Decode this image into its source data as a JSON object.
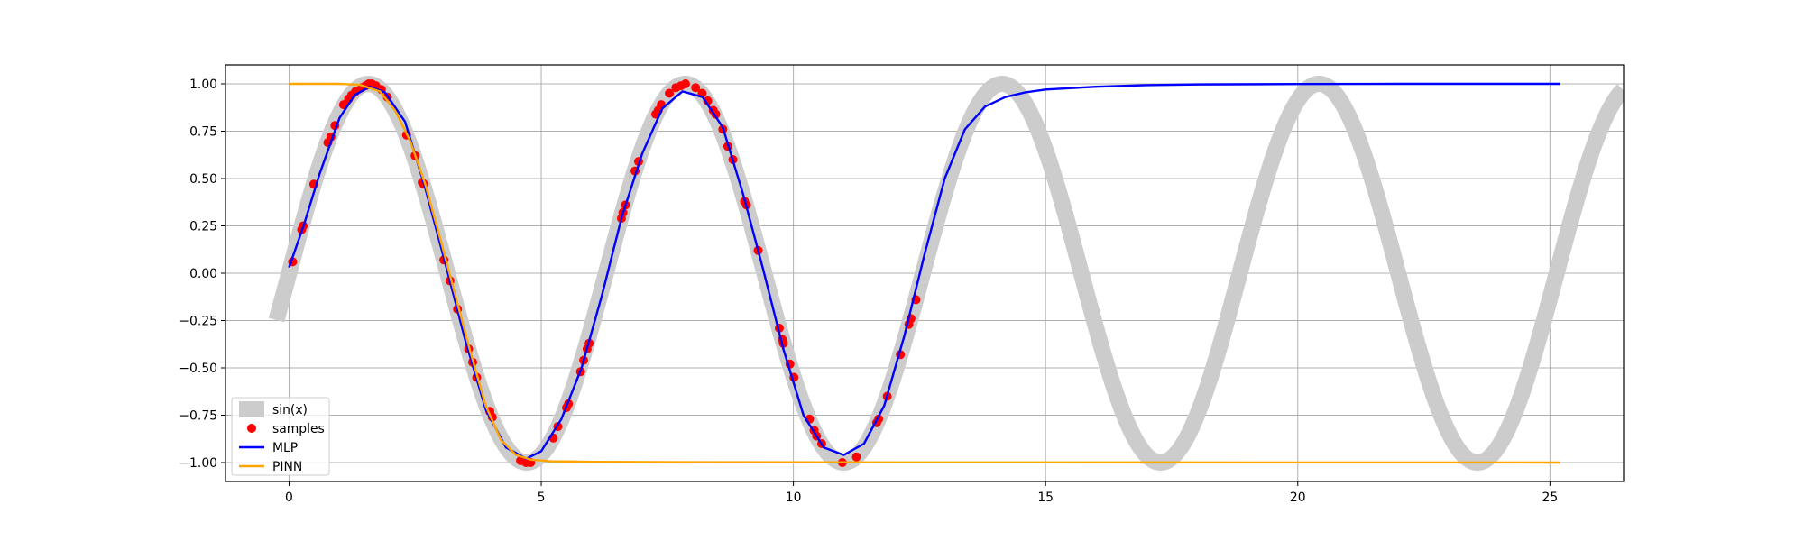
{
  "chart_data": {
    "type": "line",
    "title": "",
    "xlabel": "",
    "ylabel": "",
    "xlim": [
      -1.26,
      26.46
    ],
    "ylim": [
      -1.1,
      1.1
    ],
    "grid": true,
    "xticks": [
      {
        "value": 0,
        "label": "0"
      },
      {
        "value": 5,
        "label": "5"
      },
      {
        "value": 10,
        "label": "10"
      },
      {
        "value": 15,
        "label": "15"
      },
      {
        "value": 20,
        "label": "20"
      },
      {
        "value": 25,
        "label": "25"
      }
    ],
    "yticks": [
      {
        "value": 1.0,
        "label": "1.00"
      },
      {
        "value": 0.75,
        "label": "0.75"
      },
      {
        "value": 0.5,
        "label": "0.50"
      },
      {
        "value": 0.25,
        "label": "0.25"
      },
      {
        "value": 0.0,
        "label": "0.00"
      },
      {
        "value": -0.25,
        "label": "−0.25"
      },
      {
        "value": -0.5,
        "label": "−0.50"
      },
      {
        "value": -0.75,
        "label": "−0.75"
      },
      {
        "value": -1.0,
        "label": "−1.00"
      }
    ],
    "legend_position": "lower-left",
    "series": [
      {
        "name": "sin(x)",
        "kind": "line",
        "color": "#cccccc",
        "function": "sin",
        "domain": [
          -0.25,
          26.45
        ]
      },
      {
        "name": "samples",
        "kind": "scatter",
        "color": "#ff0000",
        "points": [
          [
            0.07,
            0.06
          ],
          [
            0.25,
            0.23
          ],
          [
            0.28,
            0.25
          ],
          [
            0.49,
            0.47
          ],
          [
            0.77,
            0.69
          ],
          [
            0.83,
            0.72
          ],
          [
            0.91,
            0.78
          ],
          [
            1.08,
            0.89
          ],
          [
            1.18,
            0.92
          ],
          [
            1.24,
            0.94
          ],
          [
            1.32,
            0.96
          ],
          [
            1.44,
            0.98
          ],
          [
            1.52,
            0.99
          ],
          [
            1.58,
            1.0
          ],
          [
            1.64,
            1.0
          ],
          [
            1.72,
            0.99
          ],
          [
            1.83,
            0.97
          ],
          [
            1.95,
            0.93
          ],
          [
            2.33,
            0.73
          ],
          [
            2.5,
            0.62
          ],
          [
            2.64,
            0.48
          ],
          [
            2.67,
            0.47
          ],
          [
            3.07,
            0.07
          ],
          [
            3.19,
            -0.04
          ],
          [
            3.34,
            -0.19
          ],
          [
            3.56,
            -0.4
          ],
          [
            3.64,
            -0.47
          ],
          [
            3.72,
            -0.55
          ],
          [
            3.98,
            -0.73
          ],
          [
            4.03,
            -0.76
          ],
          [
            4.59,
            -0.99
          ],
          [
            4.7,
            -1.0
          ],
          [
            4.79,
            -1.0
          ],
          [
            5.24,
            -0.87
          ],
          [
            5.33,
            -0.81
          ],
          [
            5.5,
            -0.71
          ],
          [
            5.54,
            -0.69
          ],
          [
            5.78,
            -0.52
          ],
          [
            5.84,
            -0.46
          ],
          [
            5.91,
            -0.4
          ],
          [
            5.95,
            -0.37
          ],
          [
            6.59,
            0.29
          ],
          [
            6.62,
            0.32
          ],
          [
            6.67,
            0.36
          ],
          [
            6.86,
            0.54
          ],
          [
            6.93,
            0.59
          ],
          [
            7.27,
            0.84
          ],
          [
            7.32,
            0.86
          ],
          [
            7.38,
            0.89
          ],
          [
            7.54,
            0.95
          ],
          [
            7.67,
            0.98
          ],
          [
            7.77,
            0.99
          ],
          [
            7.86,
            1.0
          ],
          [
            8.06,
            0.98
          ],
          [
            8.19,
            0.95
          ],
          [
            8.3,
            0.91
          ],
          [
            8.41,
            0.86
          ],
          [
            8.46,
            0.84
          ],
          [
            8.6,
            0.76
          ],
          [
            8.7,
            0.67
          ],
          [
            8.8,
            0.6
          ],
          [
            9.03,
            0.38
          ],
          [
            9.07,
            0.36
          ],
          [
            9.3,
            0.12
          ],
          [
            9.72,
            -0.29
          ],
          [
            9.78,
            -0.35
          ],
          [
            9.8,
            -0.37
          ],
          [
            9.93,
            -0.48
          ],
          [
            10.01,
            -0.55
          ],
          [
            10.32,
            -0.77
          ],
          [
            10.41,
            -0.83
          ],
          [
            10.46,
            -0.86
          ],
          [
            10.56,
            -0.9
          ],
          [
            10.97,
            -1.0
          ],
          [
            11.25,
            -0.97
          ],
          [
            11.65,
            -0.79
          ],
          [
            11.69,
            -0.77
          ],
          [
            11.86,
            -0.65
          ],
          [
            12.12,
            -0.43
          ],
          [
            12.29,
            -0.27
          ],
          [
            12.33,
            -0.24
          ],
          [
            12.43,
            -0.14
          ]
        ]
      },
      {
        "name": "MLP",
        "kind": "line",
        "color": "#0000ff",
        "points": [
          [
            0.0,
            0.03
          ],
          [
            0.3,
            0.26
          ],
          [
            0.6,
            0.52
          ],
          [
            1.0,
            0.82
          ],
          [
            1.3,
            0.94
          ],
          [
            1.6,
            0.985
          ],
          [
            1.9,
            0.955
          ],
          [
            2.3,
            0.8
          ],
          [
            2.7,
            0.45
          ],
          [
            3.1,
            0.05
          ],
          [
            3.5,
            -0.36
          ],
          [
            3.9,
            -0.72
          ],
          [
            4.3,
            -0.92
          ],
          [
            4.7,
            -0.98
          ],
          [
            5.0,
            -0.94
          ],
          [
            5.4,
            -0.77
          ],
          [
            5.8,
            -0.5
          ],
          [
            6.2,
            -0.12
          ],
          [
            6.6,
            0.3
          ],
          [
            7.0,
            0.63
          ],
          [
            7.4,
            0.87
          ],
          [
            7.8,
            0.96
          ],
          [
            8.2,
            0.93
          ],
          [
            8.6,
            0.77
          ],
          [
            9.0,
            0.42
          ],
          [
            9.4,
            0.02
          ],
          [
            9.8,
            -0.4
          ],
          [
            10.2,
            -0.75
          ],
          [
            10.6,
            -0.92
          ],
          [
            11.0,
            -0.96
          ],
          [
            11.4,
            -0.9
          ],
          [
            11.8,
            -0.7
          ],
          [
            12.2,
            -0.33
          ],
          [
            12.6,
            0.1
          ],
          [
            13.0,
            0.5
          ],
          [
            13.4,
            0.76
          ],
          [
            13.8,
            0.88
          ],
          [
            14.2,
            0.93
          ],
          [
            14.6,
            0.955
          ],
          [
            15.0,
            0.97
          ],
          [
            16.0,
            0.985
          ],
          [
            17.0,
            0.993
          ],
          [
            18.0,
            0.997
          ],
          [
            20.0,
            0.999
          ],
          [
            22.0,
            1.0
          ],
          [
            25.2,
            1.0
          ]
        ]
      },
      {
        "name": "PINN",
        "kind": "line",
        "color": "#ffa500",
        "points": [
          [
            0.0,
            1.0
          ],
          [
            1.0,
            1.0
          ],
          [
            1.4,
            0.995
          ],
          [
            1.8,
            0.96
          ],
          [
            2.1,
            0.86
          ],
          [
            2.4,
            0.7
          ],
          [
            2.7,
            0.47
          ],
          [
            3.0,
            0.18
          ],
          [
            3.3,
            -0.12
          ],
          [
            3.6,
            -0.42
          ],
          [
            3.9,
            -0.7
          ],
          [
            4.2,
            -0.88
          ],
          [
            4.5,
            -0.96
          ],
          [
            4.8,
            -0.985
          ],
          [
            5.2,
            -0.993
          ],
          [
            6.0,
            -0.996
          ],
          [
            8.0,
            -0.998
          ],
          [
            12.0,
            -0.999
          ],
          [
            25.2,
            -1.0
          ]
        ]
      }
    ]
  }
}
